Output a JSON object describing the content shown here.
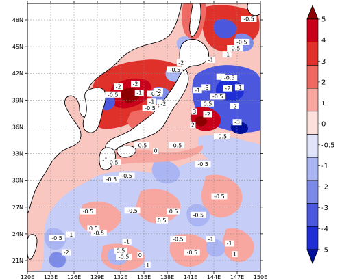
{
  "lat_labels": [
    "48N",
    "45N",
    "42N",
    "39N",
    "36N",
    "33N",
    "30N",
    "27N",
    "24N",
    "21N"
  ],
  "lon_labels": [
    "120E",
    "123E",
    "126E",
    "129E",
    "132E",
    "135E",
    "138E",
    "141E",
    "144E",
    "147E",
    "150E"
  ],
  "colorbar": {
    "labels": [
      "5",
      "4",
      "3",
      "2",
      "1",
      "0",
      "-0.5",
      "-1",
      "-2",
      "-3",
      "-4",
      "-5"
    ],
    "colors": [
      "#8b0000",
      "#c8001a",
      "#e0302a",
      "#ef6a62",
      "#f7a6a0",
      "#fde0dc",
      "#dfe4fb",
      "#aab6f3",
      "#7c8ae8",
      "#4b58de",
      "#1f2ed4",
      "#00109a"
    ]
  },
  "contour_labels": [
    {
      "text": "-0.5",
      "lon": 148.5,
      "lat": 48.0
    },
    {
      "text": "-0.5",
      "lon": 147.6,
      "lat": 45.4
    },
    {
      "text": "-0.5",
      "lon": 146.7,
      "lat": 44.7
    },
    {
      "text": "-1",
      "lon": 145.7,
      "lat": 44.0
    },
    {
      "text": "-1",
      "lon": 143.6,
      "lat": 43.4
    },
    {
      "text": "-2",
      "lon": 139.8,
      "lat": 43.1
    },
    {
      "text": "-0.5",
      "lon": 139.0,
      "lat": 42.3
    },
    {
      "text": "-1",
      "lon": 144.9,
      "lat": 41.5
    },
    {
      "text": "-0.5",
      "lon": 146.0,
      "lat": 41.4
    },
    {
      "text": "-2",
      "lon": 133.9,
      "lat": 40.7
    },
    {
      "text": "-2",
      "lon": 131.7,
      "lat": 40.4
    },
    {
      "text": "-1",
      "lon": 134.4,
      "lat": 39.7
    },
    {
      "text": "-0.5",
      "lon": 131.0,
      "lat": 39.5
    },
    {
      "text": "-0.5",
      "lon": 136.4,
      "lat": 39.6
    },
    {
      "text": "-2",
      "lon": 136.9,
      "lat": 39.9
    },
    {
      "text": "-1",
      "lon": 136.0,
      "lat": 38.7
    },
    {
      "text": "1",
      "lon": 137.0,
      "lat": 38.6
    },
    {
      "text": "-2",
      "lon": 137.5,
      "lat": 38.5
    },
    {
      "text": "-0.5",
      "lon": 135.8,
      "lat": 38.0
    },
    {
      "text": "-3",
      "lon": 143.0,
      "lat": 40.3
    },
    {
      "text": "-1",
      "lon": 141.9,
      "lat": 40.0
    },
    {
      "text": "-2",
      "lon": 145.8,
      "lat": 40.2
    },
    {
      "text": "-1",
      "lon": 147.3,
      "lat": 40.3
    },
    {
      "text": "-0.5",
      "lon": 144.5,
      "lat": 39.3
    },
    {
      "text": "-2",
      "lon": 146.6,
      "lat": 38.2
    },
    {
      "text": "0.5",
      "lon": 143.2,
      "lat": 38.5
    },
    {
      "text": "3",
      "lon": 141.5,
      "lat": 37.6
    },
    {
      "text": "-2",
      "lon": 143.2,
      "lat": 37.3
    },
    {
      "text": "2",
      "lon": 141.3,
      "lat": 36.1
    },
    {
      "text": "-3",
      "lon": 147.0,
      "lat": 36.4
    },
    {
      "text": "-0.5",
      "lon": 145.0,
      "lat": 34.8
    },
    {
      "text": "-0.5",
      "lon": 139.2,
      "lat": 33.8
    },
    {
      "text": "-0.5",
      "lon": 134.7,
      "lat": 33.8
    },
    {
      "text": "0",
      "lon": 136.5,
      "lat": 33.2
    },
    {
      "text": "-1",
      "lon": 130.0,
      "lat": 32.2
    },
    {
      "text": "-0.5",
      "lon": 131.0,
      "lat": 31.9
    },
    {
      "text": "-0.5",
      "lon": 130.8,
      "lat": 30.0
    },
    {
      "text": "-0.5",
      "lon": 132.8,
      "lat": 30.4
    },
    {
      "text": "-0.5",
      "lon": 142.6,
      "lat": 31.7
    },
    {
      "text": "-0.5",
      "lon": 144.7,
      "lat": 28.1
    },
    {
      "text": "-0.5",
      "lon": 133.5,
      "lat": 26.5
    },
    {
      "text": "-0.5",
      "lon": 127.8,
      "lat": 26.4
    },
    {
      "text": "-0.5",
      "lon": 142.0,
      "lat": 26.0
    },
    {
      "text": "0.5",
      "lon": 138.8,
      "lat": 26.4
    },
    {
      "text": "0.5",
      "lon": 137.3,
      "lat": 25.4
    },
    {
      "text": "0.5",
      "lon": 128.5,
      "lat": 24.5
    },
    {
      "text": "-0.5",
      "lon": 129.2,
      "lat": 24.0
    },
    {
      "text": "-0.5",
      "lon": 123.8,
      "lat": 23.4
    },
    {
      "text": "-1",
      "lon": 125.5,
      "lat": 23.8
    },
    {
      "text": "-0.5",
      "lon": 139.4,
      "lat": 23.3
    },
    {
      "text": "-1",
      "lon": 132.8,
      "lat": 23.0
    },
    {
      "text": "0.5",
      "lon": 132.0,
      "lat": 22.0
    },
    {
      "text": "-1",
      "lon": 143.6,
      "lat": 23.3
    },
    {
      "text": "-1",
      "lon": 146.0,
      "lat": 22.8
    },
    {
      "text": "1",
      "lon": 146.7,
      "lat": 21.6
    },
    {
      "text": "-0.5",
      "lon": 141.2,
      "lat": 21.8
    },
    {
      "text": "0",
      "lon": 134.5,
      "lat": 21.5
    },
    {
      "text": "-0.5",
      "lon": 132.4,
      "lat": 21.3
    },
    {
      "text": "-2",
      "lon": 125.0,
      "lat": 21.8
    },
    {
      "text": "1",
      "lon": 135.5,
      "lat": 20.4
    }
  ]
}
